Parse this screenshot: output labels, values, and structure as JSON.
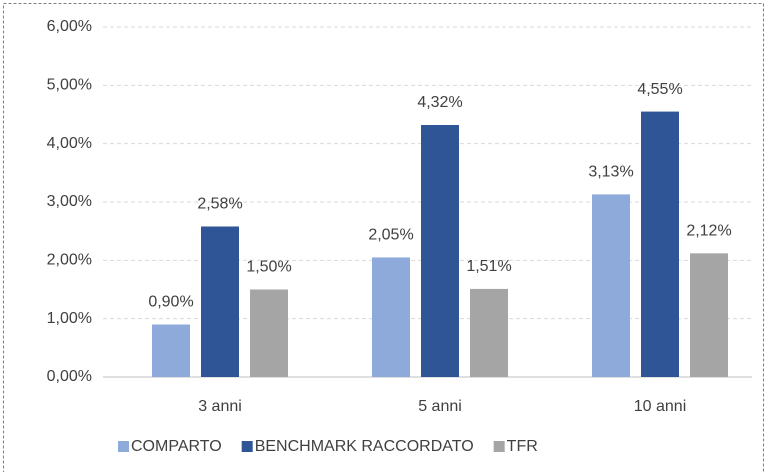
{
  "chart_data": {
    "type": "bar",
    "categories": [
      "3 anni",
      "5 anni",
      "10 anni"
    ],
    "series": [
      {
        "name": "COMPARTO",
        "color": "#8eaadb",
        "values": [
          0.9,
          2.05,
          3.13
        ],
        "value_labels": [
          "0,90%",
          "2,05%",
          "3,13%"
        ]
      },
      {
        "name": "BENCHMARK RACCORDATO",
        "color": "#2f5597",
        "values": [
          2.58,
          4.32,
          4.55
        ],
        "value_labels": [
          "2,58%",
          "4,32%",
          "4,55%"
        ]
      },
      {
        "name": "TFR",
        "color": "#a5a5a5",
        "values": [
          1.5,
          1.51,
          2.12
        ],
        "value_labels": [
          "1,50%",
          "1,51%",
          "2,12%"
        ]
      }
    ],
    "ylim": [
      0,
      6
    ],
    "yticks": [
      {
        "value": 0,
        "label": "0,00%"
      },
      {
        "value": 1,
        "label": "1,00%"
      },
      {
        "value": 2,
        "label": "2,00%"
      },
      {
        "value": 3,
        "label": "3,00%"
      },
      {
        "value": 4,
        "label": "4,00%"
      },
      {
        "value": 5,
        "label": "5,00%"
      },
      {
        "value": 6,
        "label": "6,00%"
      }
    ],
    "grid": true,
    "legend": "bottom"
  }
}
